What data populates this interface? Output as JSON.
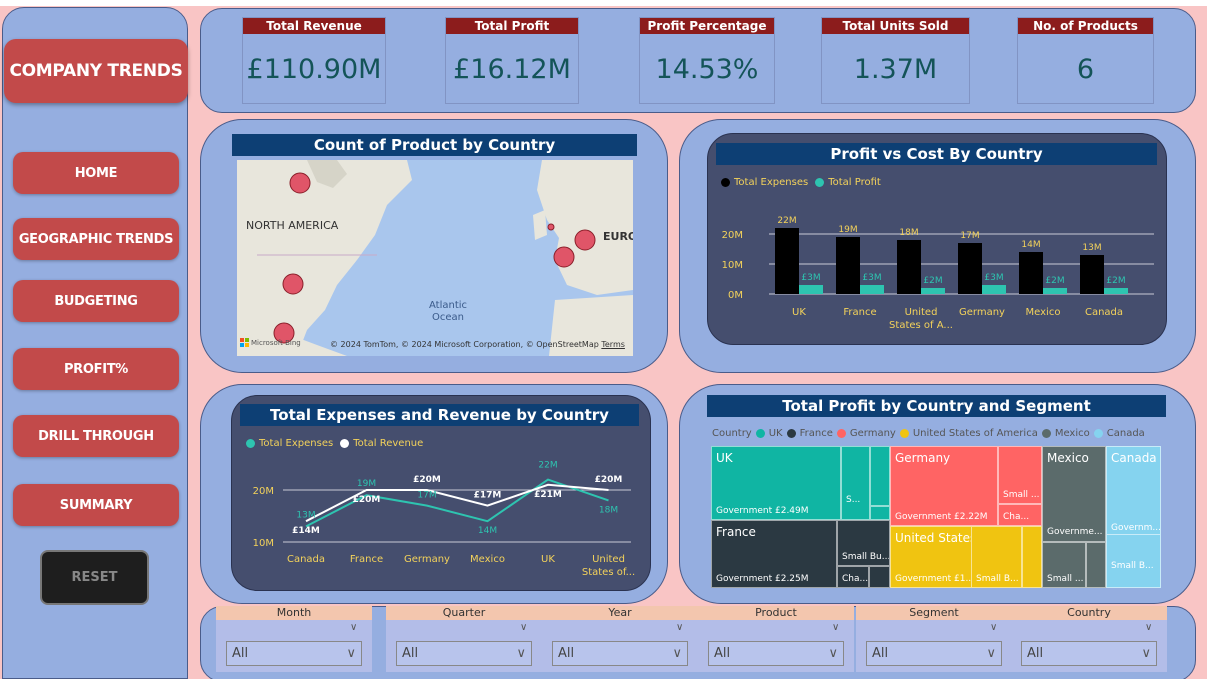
{
  "sidebar": {
    "brand": "COMPANY TRENDS",
    "nav": [
      "HOME",
      "GEOGRAPHIC TRENDS",
      "BUDGETING",
      "PROFIT%",
      "DRILL THROUGH",
      "SUMMARY"
    ],
    "reset": "RESET"
  },
  "kpis": [
    {
      "label": "Total Revenue",
      "value": "£110.90M"
    },
    {
      "label": "Total Profit",
      "value": "£16.12M"
    },
    {
      "label": "Profit Percentage",
      "value": "14.53%"
    },
    {
      "label": "Total Units Sold",
      "value": "1.37M"
    },
    {
      "label": "No. of Products",
      "value": "6"
    }
  ],
  "map": {
    "title": "Count of Product by Country",
    "label_north_america": "NORTH AMERICA",
    "label_europe": "EURO",
    "label_ocean": "Atlantic Ocean",
    "credit": "© 2024 TomTom, © 2024 Microsoft Corporation, © OpenStreetMap",
    "terms": "Terms",
    "logo": "Microsoft Bing"
  },
  "profit_cost": {
    "title": "Profit vs Cost By Country",
    "legend": [
      "Total Expenses",
      "Total Profit"
    ],
    "colors": {
      "expenses": "#000000",
      "profit": "#2ec4b0"
    },
    "yticks": [
      "20M",
      "10M",
      "0M"
    ],
    "chart_data": {
      "type": "bar",
      "categories": [
        "UK",
        "France",
        "United States of A...",
        "Germany",
        "Mexico",
        "Canada"
      ],
      "series": [
        {
          "name": "Total Expenses",
          "values": [
            22,
            19,
            18,
            17,
            14,
            13
          ]
        },
        {
          "name": "Total Profit",
          "values": [
            3,
            3,
            2,
            3,
            2,
            2
          ]
        }
      ],
      "data_labels": {
        "expenses": [
          "22M",
          "19M",
          "18M",
          "17M",
          "14M",
          "13M"
        ],
        "profit": [
          "£3M",
          "£3M",
          "£2M",
          "£3M",
          "£2M",
          "£2M"
        ]
      },
      "ylim": [
        0,
        22
      ]
    }
  },
  "exp_rev": {
    "title": "Total Expenses and Revenue by Country",
    "legend": [
      "Total Expenses",
      "Total Revenue"
    ],
    "colors": {
      "expenses": "#2ec4b0",
      "revenue": "#ffffff"
    },
    "yticks": [
      "20M",
      "10M"
    ],
    "chart_data": {
      "type": "line",
      "categories": [
        "Canada",
        "France",
        "Germany",
        "Mexico",
        "UK",
        "United States of..."
      ],
      "series": [
        {
          "name": "Total Expenses",
          "values": [
            13,
            19,
            17,
            14,
            22,
            18
          ]
        },
        {
          "name": "Total Revenue",
          "values": [
            14,
            20,
            20,
            17,
            21,
            20
          ]
        }
      ],
      "data_labels": {
        "expenses": [
          "13M",
          "19M",
          "17M",
          "14M",
          "22M",
          "18M"
        ],
        "revenue": [
          "£14M",
          "£20M",
          "£20M",
          "£17M",
          "£21M",
          "£20M"
        ]
      },
      "ylim": [
        10,
        22
      ]
    }
  },
  "treemap": {
    "title": "Total Profit by Country and Segment",
    "legend_title": "Country",
    "legend": [
      {
        "name": "UK",
        "color": "#10b5a3"
      },
      {
        "name": "France",
        "color": "#2b3942"
      },
      {
        "name": "Germany",
        "color": "#ff6464"
      },
      {
        "name": "United States of America",
        "color": "#f0c411"
      },
      {
        "name": "Mexico",
        "color": "#5b6b6b"
      },
      {
        "name": "Canada",
        "color": "#85d3ef"
      }
    ],
    "names": {
      "uk": "UK",
      "france": "France",
      "germany": "Germany",
      "usa": "United States of America",
      "mexico": "Mexico",
      "canada": "Canada"
    },
    "labels": {
      "uk_gov": "Government £2.49M",
      "uk_s": "S...",
      "france_gov": "Government £2.25M",
      "france_small": "Small Bu...",
      "france_cha": "Cha...",
      "germany_gov": "Government £2.22M",
      "germany_small": "Small ...",
      "germany_cha": "Cha...",
      "usa_gov": "Government £1...",
      "usa_small": "Small B...",
      "mexico_gov": "Governme...",
      "mexico_small": "Small ...",
      "canada_gov": "Governm...",
      "canada_small": "Small B..."
    }
  },
  "filters": [
    {
      "label": "Month",
      "value": "All"
    },
    {
      "label": "Quarter",
      "value": "All"
    },
    {
      "label": "Year",
      "value": "All"
    },
    {
      "label": "Product",
      "value": "All"
    },
    {
      "label": "Segment",
      "value": "All"
    },
    {
      "label": "Country",
      "value": "All"
    }
  ]
}
